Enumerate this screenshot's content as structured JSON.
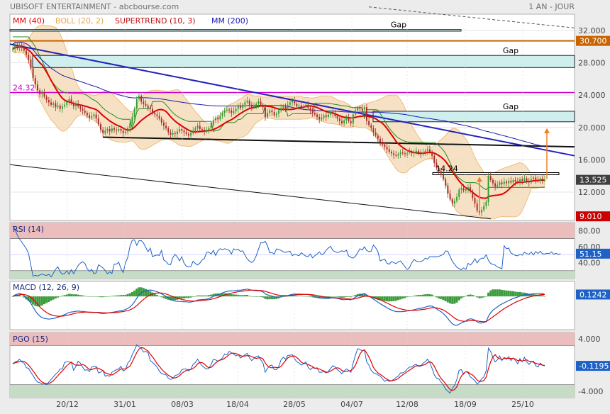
{
  "header": {
    "title": "UBISOFT ENTERTAINMENT - abcbourse.com",
    "period": "1 AN - JOUR"
  },
  "colors": {
    "background": "#ececec",
    "plot_background": "#ffffff",
    "candle_up": "#2e9b2e",
    "candle_down": "#a62a2a",
    "mm40": "#e00000",
    "mm200": "#1a1ab0",
    "boll_fill": "#f6dcba",
    "boll_edge": "#e8a54a",
    "supertrend": "#1e8c1e",
    "gap_fill": "#cfeeee",
    "orange_line": "#c86400",
    "resistance_magenta": "#cc00cc",
    "trend_blue": "#2222bb",
    "rsi_line": "#1e62c8",
    "overbought_fill": "#ebbdbd",
    "oversold_fill": "#c6dcc6",
    "signal_red": "#e00000",
    "macd_hist": "#3c9b3c",
    "price_badge_current": "#404040",
    "price_badge_orange": "#c86400",
    "price_badge_red": "#cc0000",
    "arrow_orange": "#f08020"
  },
  "chart_data": [
    {
      "type": "candlestick",
      "title": "",
      "legend": [
        "MM (40)",
        "BOLL (20, 2)",
        "SUPERTREND (10, 3)",
        "MM (200)"
      ],
      "ylim": [
        8.5,
        34
      ],
      "y_ticks": [
        32,
        28,
        24,
        20,
        16,
        12
      ],
      "y_tick_labels": [
        "32.000",
        "28.000",
        "24.000",
        "20.000",
        "16.000",
        "12.000"
      ],
      "x_tick_labels": [
        "20/12",
        "31/01",
        "08/03",
        "18/04",
        "28/05",
        "04/07",
        "12/08",
        "18/09",
        "25/10"
      ],
      "price_labels": {
        "current": "13.525",
        "upper": "30.700",
        "lower": "9.010"
      },
      "level_annotations": [
        "24.32",
        "14.24"
      ],
      "gap_labels": [
        "Gap",
        "Gap",
        "Gap"
      ],
      "levels": {
        "gap_top": [
          31.9,
          32.1
        ],
        "orange_level": 30.7,
        "gap_upper": [
          27.4,
          28.9
        ],
        "magenta_level": 24.32,
        "gap_lower": [
          20.7,
          22
        ],
        "low_level": 14.24
      },
      "closes": [
        29.7,
        30.1,
        29.8,
        30.2,
        29.9,
        29.5,
        29,
        28.4,
        27.3,
        26.1,
        25.3,
        24.6,
        24.1,
        24.3,
        23.8,
        23.4,
        23.1,
        22.8,
        23,
        22.5,
        22.7,
        22.3,
        22.6,
        22.8,
        23.2,
        23.5,
        23,
        22.6,
        22.9,
        22.6,
        22.3,
        22.1,
        21.8,
        21.5,
        21.2,
        21.4,
        21.6,
        21.1,
        20.4,
        19.7,
        19.3,
        19.6,
        19.8,
        19.5,
        19.9,
        19.7,
        19.6,
        19.8,
        19.6,
        19.3,
        19.5,
        19.9,
        20.5,
        21.3,
        22.3,
        23.5,
        23.9,
        23.2,
        22.9,
        22.7,
        22.4,
        22.3,
        21.8,
        21.6,
        21.4,
        21.1,
        20.6,
        20.2,
        19.9,
        19.4,
        19.1,
        19.3,
        19.2,
        19.5,
        19.8,
        19.6,
        19.4,
        19.2,
        19,
        19.3,
        19.6,
        19.9,
        20.2,
        19.8,
        19.7,
        19.5,
        19.6,
        19.9,
        20.3,
        20.9,
        21.2,
        21,
        21.4,
        21.8,
        22.1,
        22.2,
        22.1,
        21.8,
        22,
        22.3,
        22.6,
        22.4,
        22.8,
        23.1,
        23.3,
        22.8,
        22.5,
        22.6,
        22.9,
        23.2,
        22.8,
        22.5,
        21.3,
        21.8,
        22.1,
        21.9,
        21.5,
        21.7,
        22.1,
        22.4,
        22.6,
        22.4,
        22.8,
        23.1,
        23.3,
        22.9,
        22.6,
        22.7,
        22.5,
        22.6,
        22.8,
        22.4,
        22.1,
        21.8,
        21.6,
        21.3,
        21,
        21.2,
        21.5,
        21.3,
        21.6,
        21.9,
        21.7,
        21.4,
        21.1,
        20.8,
        20.5,
        20.9,
        21.2,
        20.8,
        20.5,
        21.6,
        22.1,
        22.4,
        22.3,
        22.2,
        22.5,
        20.8,
        20.3,
        19.9,
        19.4,
        19,
        18.6,
        18.2,
        17.9,
        17.6,
        17.3,
        17,
        16.8,
        16.6,
        16.5,
        16.7,
        16.9,
        16.8,
        16.7,
        16.9,
        17,
        16.8,
        16.9,
        17.1,
        16.9,
        16.7,
        16.9,
        17.1,
        17.3,
        17,
        16.5,
        15.6,
        15,
        14.6,
        14.3,
        13.6,
        12.8,
        11.8,
        11.1,
        10.6,
        10.9,
        11.4,
        12.3,
        12.5,
        12.2,
        12.4,
        12.6,
        12.1,
        11.3,
        10.6,
        9.7,
        9.5,
        9.8,
        10.3,
        10.8,
        14,
        13.5,
        13.1,
        12.7,
        12.9,
        13.2,
        13,
        13.3,
        13.1,
        13.4,
        13.2,
        13.5,
        13.3,
        13.2,
        13.6,
        13.4,
        13.7,
        13.4,
        13.2,
        13.6,
        13.8,
        13.5,
        13.4,
        13.7,
        13.5,
        13.525
      ]
    },
    {
      "type": "line",
      "title": "RSI (14)",
      "y_ticks": [
        80,
        60,
        40
      ],
      "y_tick_labels": [
        "80.00",
        "60.00",
        "40.00"
      ],
      "zones": {
        "overbought": [
          70,
          90
        ],
        "oversold": [
          20,
          30
        ]
      },
      "last_value_label": "51.15",
      "values": [
        85.5,
        81.3,
        74.4,
        69.6,
        65.6,
        61.6,
        57.4,
        51.6,
        37,
        23,
        24.1,
        23.3,
        24.5,
        25.7,
        24.6,
        23.9,
        25.4,
        22.1,
        26.6,
        31.7,
        34.7,
        28.6,
        25.6,
        26.2,
        29.7,
        25.4,
        31.2,
        26.1,
        31.5,
        36.4,
        39.3,
        40.9,
        39,
        32.3,
        29,
        31.5,
        26.2,
        27.3,
        37.2,
        35.6,
        33.4,
        30.4,
        25.9,
        28.4,
        26.3,
        38,
        38.2,
        40.5,
        32.6,
        27.6,
        39.7,
        46.5,
        60.4,
        67.8,
        68.5,
        61.6,
        67.3,
        67.6,
        64.5,
        58.9,
        53.8,
        58,
        47.5,
        48.7,
        49.5,
        49,
        55.3,
        43.1,
        41.5,
        37.8,
        37.5,
        46.2,
        50.2,
        47.1,
        42.1,
        47.4,
        39.4,
        35.3,
        34.5,
        35.2,
        41.7,
        38.9,
        37.1,
        39.4,
        43.1,
        45,
        53,
        53.1,
        50.7,
        55.4,
        48.8,
        54.7,
        57.5,
        56,
        57.3,
        56.6,
        55.2,
        50.8,
        57.3,
        55.8,
        56.7,
        53.9,
        54.8,
        49.4,
        44.6,
        41.9,
        40.1,
        42.5,
        48.5,
        56.6,
        65,
        64.6,
        66.6,
        61.2,
        52.1,
        52.8,
        50.5,
        57.1,
        56.4,
        55.3,
        53.4,
        52.8,
        53.7,
        54.2,
        48.5,
        50.6,
        49.5,
        48.6,
        52.3,
        50.1,
        48.1,
        47.5,
        50.7,
        45.9,
        48.6,
        50.6,
        53.5,
        50,
        51.2,
        55.3,
        58.3,
        60.3,
        55.1,
        53.8,
        52.5,
        53.5,
        54.7,
        53.6,
        55.6,
        48.3,
        46.6,
        45.6,
        47.9,
        52.3,
        57.4,
        55.6,
        59.8,
        55.3,
        53.7,
        54.3,
        61.9,
        58.4,
        53.6,
        42.1,
        43.3,
        44.4,
        39.3,
        38,
        41.3,
        40.2,
        38.6,
        41,
        42.1,
        38.5,
        34.6,
        31.2,
        33.8,
        39.8,
        43.9,
        41.8,
        41.3,
        41.2,
        42.6,
        45.5,
        44.3,
        47.5,
        47.3,
        47.4,
        47.3,
        47.7,
        49,
        50.1,
        54.6,
        54.2,
        48,
        41.3,
        38,
        34.3,
        32.5,
        31.1,
        33.4,
        31.3,
        39.1,
        36.9,
        40,
        44.8,
        39.7,
        43.7,
        45.6,
        45.3,
        49.8,
        42.8,
        38.9,
        37.8,
        36.9,
        34.4,
        33.6,
        32.1,
        61,
        57.2,
        58.2,
        52,
        50.5,
        48.9,
        48.4,
        50.3,
        49.2,
        53,
        51.2,
        50.5,
        53.1,
        49.5,
        53.8,
        51.4,
        54.1,
        51,
        50.7,
        51.6,
        51.1,
        53.4,
        50.4,
        51.6,
        50.3,
        51.15
      ]
    },
    {
      "type": "line",
      "title": "MACD (12, 26, 9)",
      "last_value_label": "0.1242",
      "macd": [
        0,
        0.1,
        0.15,
        0.2,
        0.15,
        0.05,
        -0.1,
        -0.25,
        -0.45,
        -0.7,
        -0.95,
        -1.15,
        -1.3,
        -1.4,
        -1.45,
        -1.48,
        -1.5,
        -1.48,
        -1.46,
        -1.42,
        -1.38,
        -1.32,
        -1.26,
        -1.2,
        -1.13,
        -1.06,
        -1.03,
        -1.01,
        -0.98,
        -0.97,
        -0.98,
        -0.99,
        -1.01,
        -1.03,
        -1.05,
        -1.06,
        -1.06,
        -1.06,
        -1.08,
        -1.12,
        -1.13,
        -1.12,
        -1.1,
        -1.08,
        -1.05,
        -1.03,
        -1,
        -0.97,
        -0.94,
        -0.91,
        -0.87,
        -0.79,
        -0.69,
        -0.55,
        -0.36,
        -0.12,
        0.1,
        0.24,
        0.33,
        0.38,
        0.41,
        0.42,
        0.4,
        0.36,
        0.31,
        0.25,
        0.17,
        0.09,
        0,
        -0.1,
        -0.2,
        -0.26,
        -0.31,
        -0.33,
        -0.33,
        -0.34,
        -0.35,
        -0.36,
        -0.38,
        -0.37,
        -0.34,
        -0.3,
        -0.24,
        -0.22,
        -0.21,
        -0.2,
        -0.18,
        -0.14,
        -0.08,
        0,
        0.07,
        0.12,
        0.17,
        0.23,
        0.28,
        0.33,
        0.36,
        0.36,
        0.37,
        0.39,
        0.41,
        0.41,
        0.43,
        0.46,
        0.48,
        0.45,
        0.41,
        0.39,
        0.38,
        0.38,
        0.35,
        0.3,
        0.17,
        0.1,
        0.06,
        0.02,
        -0.03,
        -0.05,
        -0.04,
        -0.01,
        0.02,
        0.03,
        0.06,
        0.1,
        0.14,
        0.15,
        0.15,
        0.15,
        0.14,
        0.14,
        0.14,
        0.12,
        0.09,
        0.05,
        0.01,
        -0.04,
        -0.09,
        -0.12,
        -0.13,
        -0.15,
        -0.14,
        -0.11,
        -0.1,
        -0.11,
        -0.13,
        -0.17,
        -0.21,
        -0.22,
        -0.2,
        -0.2,
        -0.23,
        -0.15,
        -0.06,
        0.03,
        0.1,
        0.14,
        0.19,
        0.1,
        0.01,
        -0.08,
        -0.18,
        -0.28,
        -0.38,
        -0.48,
        -0.57,
        -0.66,
        -0.75,
        -0.83,
        -0.9,
        -0.96,
        -1,
        -1.01,
        -1.01,
        -1,
        -0.99,
        -0.96,
        -0.93,
        -0.91,
        -0.88,
        -0.84,
        -0.81,
        -0.79,
        -0.75,
        -0.71,
        -0.66,
        -0.63,
        -0.64,
        -0.72,
        -0.82,
        -0.92,
        -1.01,
        -1.13,
        -1.28,
        -1.46,
        -1.64,
        -1.8,
        -1.89,
        -1.91,
        -1.84,
        -1.75,
        -1.69,
        -1.61,
        -1.52,
        -1.48,
        -1.5,
        -1.57,
        -1.68,
        -1.75,
        -1.76,
        -1.73,
        -1.66,
        -1.32,
        -1.08,
        -0.91,
        -0.8,
        -0.69,
        -0.58,
        -0.5,
        -0.42,
        -0.35,
        -0.27,
        -0.21,
        -0.14,
        -0.09,
        -0.04,
        0.02,
        0.05,
        0.1,
        0.12,
        0.12,
        0.15,
        0.18,
        0.18,
        0.18,
        0.2,
        0.2,
        0.1242
      ],
      "signal": [
        0,
        0.04,
        0.07,
        0.11,
        0.13,
        0.12,
        0.09,
        0.04,
        -0.06,
        -0.19,
        -0.35,
        -0.52,
        -0.69,
        -0.83,
        -0.96,
        -1.06,
        -1.15,
        -1.21,
        -1.26,
        -1.29,
        -1.31,
        -1.31,
        -1.3,
        -1.28,
        -1.25,
        -1.22,
        -1.18,
        -1.14,
        -1.11,
        -1.08,
        -1.06,
        -1.05,
        -1.04,
        -1.04,
        -1.04,
        -1.04,
        -1.05,
        -1.05,
        -1.05,
        -1.07,
        -1.08,
        -1.09,
        -1.09,
        -1.09,
        -1.08,
        -1.07,
        -1.06,
        -1.04,
        -1.02,
        -1,
        -0.97,
        -0.94,
        -0.89,
        -0.82,
        -0.73,
        -0.61,
        -0.47,
        -0.33,
        -0.2,
        -0.08,
        0.02,
        0.1,
        0.16,
        0.2,
        0.22,
        0.23,
        0.22,
        0.2,
        0.16,
        0.11,
        0.05,
        -0.01,
        -0.07,
        -0.12,
        -0.16,
        -0.2,
        -0.23,
        -0.26,
        -0.28,
        -0.3,
        -0.31,
        -0.31,
        -0.3,
        -0.28,
        -0.27,
        -0.26,
        -0.24,
        -0.22,
        -0.19,
        -0.15,
        -0.11,
        -0.06,
        -0.01,
        0.04,
        0.09,
        0.14,
        0.18,
        0.22,
        0.25,
        0.28,
        0.31,
        0.33,
        0.35,
        0.37,
        0.39,
        0.41,
        0.41,
        0.41,
        0.41,
        0.4,
        0.39,
        0.37,
        0.33,
        0.29,
        0.24,
        0.2,
        0.15,
        0.11,
        0.08,
        0.06,
        0.05,
        0.05,
        0.05,
        0.06,
        0.08,
        0.09,
        0.11,
        0.12,
        0.12,
        0.13,
        0.13,
        0.13,
        0.12,
        0.11,
        0.09,
        0.06,
        0.03,
        0,
        -0.03,
        -0.05,
        -0.07,
        -0.08,
        -0.08,
        -0.09,
        -0.1,
        -0.11,
        -0.13,
        -0.15,
        -0.16,
        -0.17,
        -0.18,
        -0.18,
        -0.15,
        -0.11,
        -0.07,
        -0.03,
        0.01,
        0.01,
        0,
        -0.03,
        -0.06,
        -0.11,
        -0.16,
        -0.23,
        -0.29,
        -0.37,
        -0.44,
        -0.51,
        -0.59,
        -0.66,
        -0.72,
        -0.78,
        -0.82,
        -0.86,
        -0.89,
        -0.91,
        -0.92,
        -0.92,
        -0.92,
        -0.91,
        -0.9,
        -0.88,
        -0.86,
        -0.84,
        -0.81,
        -0.77,
        -0.75,
        -0.74,
        -0.76,
        -0.79,
        -0.84,
        -0.9,
        -0.98,
        -1.08,
        -1.2,
        -1.32,
        -1.43,
        -1.52,
        -1.59,
        -1.62,
        -1.64,
        -1.64,
        -1.62,
        -1.6,
        -1.59,
        -1.6,
        -1.62,
        -1.64,
        -1.66,
        -1.67,
        -1.66,
        -1.56,
        -1.46,
        -1.35,
        -1.24,
        -1.13,
        -1.02,
        -0.91,
        -0.81,
        -0.72,
        -0.63,
        -0.55,
        -0.47,
        -0.39,
        -0.32,
        -0.26,
        -0.2,
        -0.14,
        -0.09,
        -0.05,
        -0.01,
        0.03,
        0.06,
        0.08,
        0.11,
        0.12,
        0.12
      ]
    },
    {
      "type": "line",
      "title": "PGO (15)",
      "y_ticks": [
        4,
        -4
      ],
      "y_tick_labels": [
        "4.000",
        "-4.000"
      ],
      "zones": {
        "overbought": [
          3,
          5
        ],
        "oversold": [
          -5,
          -3
        ]
      },
      "last_value_label": "-0.1195",
      "values": [
        0.2,
        0.5,
        0.6,
        0.9,
        0.5,
        0.3,
        -0.4,
        -0.5,
        -1.1,
        -1.6,
        -2.2,
        -2.6,
        -2.7,
        -2.9,
        -2.8,
        -3,
        -2.6,
        -2.2,
        -1.8,
        -1.4,
        -1.1,
        -0.6,
        -0.6,
        0.4,
        0.5,
        0.5,
        0.4,
        -0.8,
        -0.2,
        0.6,
        0.3,
        -0.3,
        -0.8,
        -0.7,
        -1,
        -0.3,
        -0.2,
        -0.2,
        -1.2,
        -1.1,
        -0.8,
        -1.7,
        -1.6,
        -1.7,
        -1.1,
        -0.9,
        -0.7,
        -0.6,
        -0.2,
        -0.9,
        -0.7,
        0.3,
        0.7,
        1.6,
        2.3,
        3.1,
        2.8,
        2.6,
        2,
        2.1,
        1.9,
        0.7,
        0.4,
        0.1,
        -0.3,
        -0.9,
        -1.3,
        -1.4,
        -1.5,
        -2,
        -2.2,
        -2.1,
        -1.6,
        -1.5,
        -1.3,
        -0.7,
        -0.6,
        -0.6,
        -0.9,
        -0.6,
        0.1,
        0.4,
        0.9,
        0.3,
        -0.1,
        -0.4,
        -0.6,
        -0.5,
        0.1,
        0.9,
        0.8,
        0.6,
        0.8,
        1.1,
        1.7,
        1.6,
        2.1,
        1.9,
        1.7,
        1.4,
        1.6,
        1.1,
        1.3,
        1.6,
        1.8,
        1.1,
        0.7,
        1,
        1.3,
        1.4,
        0.8,
        0.3,
        -1.1,
        -0.5,
        -0.1,
        0,
        -0.7,
        -0.7,
        -0.2,
        0.8,
        1.2,
        0.9,
        1.5,
        1.5,
        1.6,
        1,
        0.5,
        0.3,
        0,
        0.2,
        0.5,
        -0.3,
        -0.7,
        -0.4,
        -0.5,
        -0.4,
        -1.1,
        -1.1,
        -1,
        -1.2,
        -1,
        -0.5,
        -0.1,
        -0.3,
        -0.7,
        -1,
        -1.3,
        -0.9,
        -0.6,
        -0.8,
        -1.1,
        0.3,
        1.5,
        2.5,
        2.4,
        2.2,
        2.3,
        0.5,
        0,
        -0.8,
        -1.2,
        -1.3,
        -1.5,
        -1.7,
        -2.1,
        -2.5,
        -2.3,
        -2.5,
        -2.4,
        -2.2,
        -1.9,
        -1.7,
        -1.2,
        -1.2,
        -1,
        -0.6,
        -0.3,
        -0.3,
        0,
        0.1,
        -0.2,
        -0.2,
        0.3,
        0.5,
        0.9,
        0.4,
        -0.5,
        -1.5,
        -2,
        -2.1,
        -2.6,
        -3,
        -3.7,
        -4,
        -4.3,
        -3.6,
        -3.1,
        -2.2,
        -0.8,
        -0.7,
        -1.4,
        -1,
        -1.2,
        -1.8,
        -2.1,
        -2.4,
        -2.9,
        -2.6,
        -2.1,
        -1.8,
        -0.9,
        2.6,
        2.1,
        1.2,
        0.5,
        0.8,
        1.4,
        0.7,
        1.2,
        0.9,
        1.3,
        0.7,
        1.1,
        0.7,
        0.2,
        1,
        0.5,
        1.2,
        0.5,
        0.1,
        0.5,
        0.6,
        -0.1,
        -0.3,
        0.3,
        0,
        -0.1195
      ]
    }
  ]
}
